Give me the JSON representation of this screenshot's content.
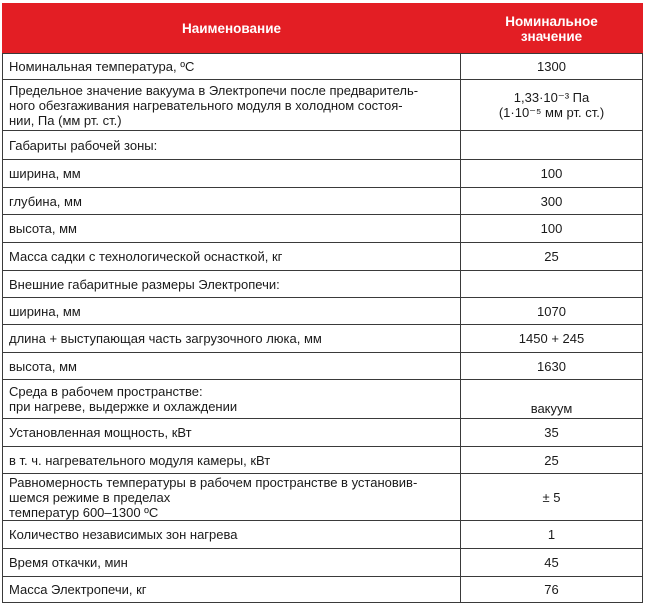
{
  "header": {
    "name": "Наименование",
    "value": "Номинальное\nзначение"
  },
  "rows": [
    {
      "name": "Номинальная температура, ºС",
      "value": "1300"
    },
    {
      "name": "Предельное значение вакуума в Электропечи после предваритель-\nного обезгаживания нагревательного модуля в холодном состоя-\nнии, Па (мм рт. ст.)",
      "value": "1,33·10⁻³ Па\n(1·10⁻⁵ мм рт. ст.)"
    },
    {
      "name": "Габариты рабочей зоны:",
      "value": ""
    },
    {
      "name": "ширина, мм",
      "value": "100"
    },
    {
      "name": "глубина, мм",
      "value": "300"
    },
    {
      "name": "высота, мм",
      "value": "100"
    },
    {
      "name": "Масса садки с технологической оснасткой, кг",
      "value": "25"
    },
    {
      "name": "Внешние габаритные размеры Электропечи:",
      "value": ""
    },
    {
      "name": "ширина, мм",
      "value": "1070"
    },
    {
      "name": "длина + выступающая часть загрузочного люка, мм",
      "value": "1450 + 245"
    },
    {
      "name": "высота, мм",
      "value": "1630"
    },
    {
      "name": "Среда в рабочем пространстве:\nпри нагреве, выдержке и охлаждении",
      "value": "вакуум"
    },
    {
      "name": "Установленная мощность, кВт",
      "value": "35"
    },
    {
      "name": " в т. ч. нагревательного модуля камеры, кВт",
      "value": "25"
    },
    {
      "name": "Равномерность температуры в рабочем пространстве в установив-\nшемся режиме в пределах\nтемператур 600–1300 ºС",
      "value": "± 5"
    },
    {
      "name": "Количество независимых зон нагрева",
      "value": "1"
    },
    {
      "name": "Время откачки, мин",
      "value": "45"
    },
    {
      "name": "Масса Электропечи, кг",
      "value": "76"
    }
  ]
}
